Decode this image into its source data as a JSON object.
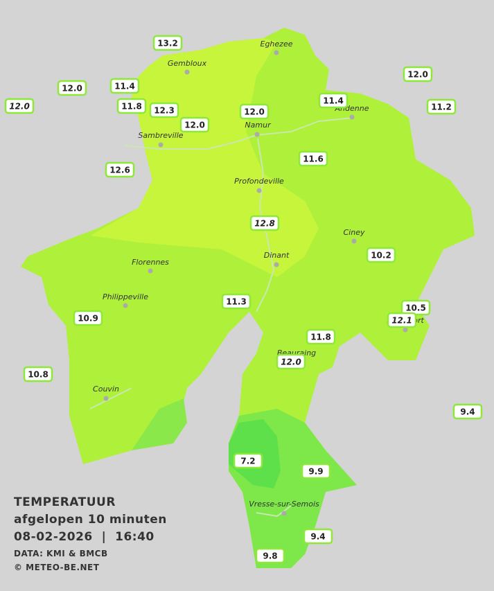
{
  "legend": {
    "title": "TEMPERATUUR",
    "subtitle": "afgelopen 10 minuten",
    "datetime": "08-02-2026  |  16:40",
    "source": "DATA: KMI & BMCB",
    "credit": "© METEO-BE.NET"
  },
  "towns": [
    "Eghezee",
    "Gembloux",
    "Andenne",
    "Namur",
    "Sambreville",
    "Profondeville",
    "Ciney",
    "Dinant",
    "Florennes",
    "Philippeville",
    "Rochefort",
    "Beauraing",
    "Couvin",
    "Vresse-sur-Semois"
  ],
  "stations": [
    {
      "value": "13.2"
    },
    {
      "value": "12.0"
    },
    {
      "value": "11.4"
    },
    {
      "value": "12.0",
      "italic": true
    },
    {
      "value": "11.8"
    },
    {
      "value": "12.3"
    },
    {
      "value": "12.0"
    },
    {
      "value": "12.0"
    },
    {
      "value": "11.4"
    },
    {
      "value": "12.0"
    },
    {
      "value": "11.2"
    },
    {
      "value": "12.6"
    },
    {
      "value": "11.6"
    },
    {
      "value": "12.8",
      "italic": true
    },
    {
      "value": "10.2"
    },
    {
      "value": "11.3"
    },
    {
      "value": "10.5"
    },
    {
      "value": "12.1",
      "italic": true
    },
    {
      "value": "10.9"
    },
    {
      "value": "11.8"
    },
    {
      "value": "12.0",
      "italic": true
    },
    {
      "value": "10.8"
    },
    {
      "value": "9.4"
    },
    {
      "value": "7.2"
    },
    {
      "value": "9.9"
    },
    {
      "value": "9.4"
    },
    {
      "value": "9.8"
    }
  ]
}
